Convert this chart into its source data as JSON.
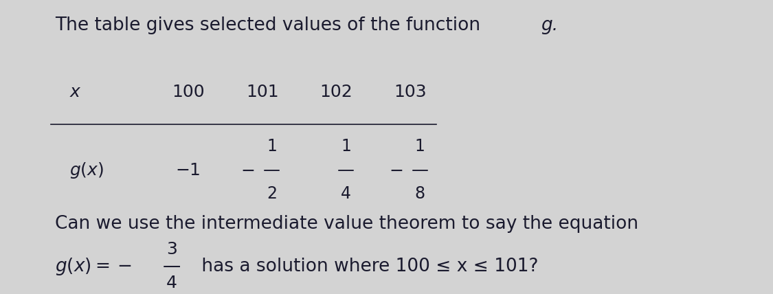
{
  "background_color": "#d3d3d3",
  "title_text": "The table gives selected values of the function ",
  "title_italic": "g.",
  "x_values": [
    "100",
    "101",
    "102",
    "103"
  ],
  "text_color": "#1a1a2e",
  "font_size_title": 19,
  "font_size_table": 18,
  "font_size_question": 19,
  "question_line1": "Can we use the intermediate value theorem to say the equation",
  "frac_num_q": "3",
  "frac_den_q": "4",
  "question_suffix": " has a solution where 100 ≤ x ≤ 101?"
}
